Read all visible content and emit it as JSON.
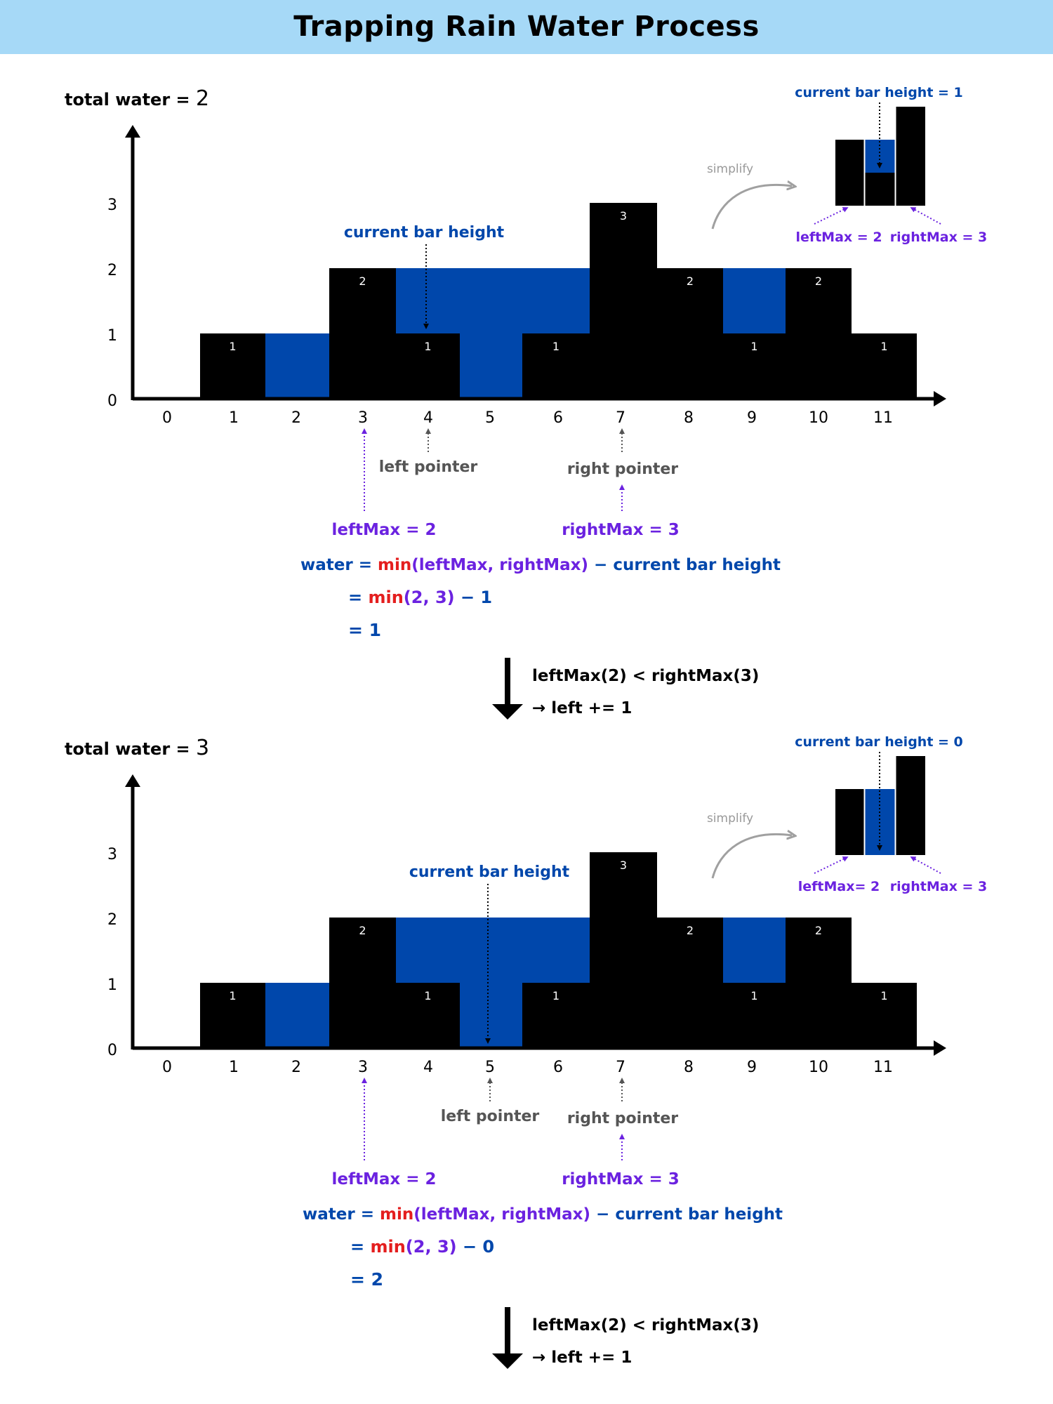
{
  "title": "Trapping Rain Water Process",
  "colors": {
    "bar": "#000000",
    "water": "#0047ab",
    "blue_text": "#0047ab",
    "purple": "#6b22e0",
    "red": "#e41e1e",
    "gray": "#555555",
    "light_gray_arrow": "#a0a0a0",
    "header_bg": "#a6d9f7"
  },
  "chart_data": [
    {
      "type": "bar",
      "total_label": "total water = ",
      "total_value": "2",
      "x_ticks": [
        "0",
        "1",
        "2",
        "3",
        "4",
        "5",
        "6",
        "7",
        "8",
        "9",
        "10",
        "11"
      ],
      "y_ticks": [
        "0",
        "1",
        "2",
        "3"
      ],
      "heights": [
        0,
        1,
        0,
        2,
        1,
        0,
        1,
        3,
        2,
        1,
        2,
        1
      ],
      "water": [
        0,
        0,
        1,
        0,
        1,
        2,
        1,
        0,
        0,
        1,
        0,
        0
      ],
      "bar_labels": [
        "",
        "1",
        "",
        "2",
        "1",
        "",
        "1",
        "3",
        "2",
        "1",
        "2",
        "1"
      ],
      "current_index": 4,
      "current_label": "current bar height",
      "left_pointer_index": 4,
      "left_pointer_label": "left pointer",
      "right_pointer_index": 7,
      "right_pointer_label": "right pointer",
      "leftmax_index": 3,
      "leftmax_label": "leftMax = 2",
      "rightmax_label": "rightMax = 3",
      "formula": {
        "lhs": "water = ",
        "fn": "min",
        "args": "(leftMax, rightMax)",
        "rest": " − current bar height",
        "step1_eq": "= ",
        "step1_fn": "min",
        "step1_args": "(2, 3)",
        "step1_rest": " − 1",
        "step2": "= 1"
      },
      "step_arrow": {
        "line1": "leftMax(2) < rightMax(3)",
        "line2": "→ left += 1"
      },
      "inset": {
        "simplify": "simplify",
        "current": "current bar height = 1",
        "left_max": "leftMax = 2",
        "right_max": "rightMax = 3",
        "heights": [
          2,
          1,
          3
        ],
        "water": [
          0,
          1,
          0
        ]
      }
    },
    {
      "type": "bar",
      "total_label": "total water = ",
      "total_value": "3",
      "x_ticks": [
        "0",
        "1",
        "2",
        "3",
        "4",
        "5",
        "6",
        "7",
        "8",
        "9",
        "10",
        "11"
      ],
      "y_ticks": [
        "0",
        "1",
        "2",
        "3"
      ],
      "heights": [
        0,
        1,
        0,
        2,
        1,
        0,
        1,
        3,
        2,
        1,
        2,
        1
      ],
      "water": [
        0,
        0,
        1,
        0,
        1,
        2,
        1,
        0,
        0,
        1,
        0,
        0
      ],
      "bar_labels": [
        "",
        "1",
        "",
        "2",
        "1",
        "",
        "1",
        "3",
        "2",
        "1",
        "2",
        "1"
      ],
      "current_index": 5,
      "current_label": "current bar height",
      "left_pointer_index": 5,
      "left_pointer_label": "left pointer",
      "right_pointer_index": 7,
      "right_pointer_label": "right pointer",
      "leftmax_index": 3,
      "leftmax_label": "leftMax = 2",
      "rightmax_label": "rightMax = 3",
      "formula": {
        "lhs": "water = ",
        "fn": "min",
        "args": "(leftMax, rightMax)",
        "rest": " − current bar height",
        "step1_eq": "= ",
        "step1_fn": "min",
        "step1_args": "(2, 3)",
        "step1_rest": " − 0",
        "step2": "=  2"
      },
      "step_arrow": {
        "line1": "leftMax(2) <  rightMax(3)",
        "line2": "→ left += 1"
      },
      "inset": {
        "simplify": "simplify",
        "current": "current bar height = 0",
        "left_max": "leftMax= 2",
        "right_max": "rightMax = 3",
        "heights": [
          2,
          0,
          3
        ],
        "water": [
          0,
          2,
          0
        ]
      }
    }
  ]
}
